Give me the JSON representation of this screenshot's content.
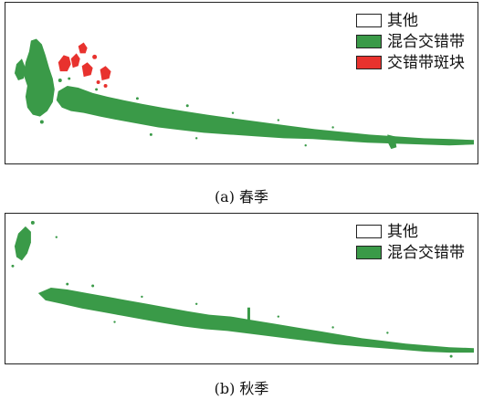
{
  "colors": {
    "other": "#ffffff",
    "mixed": "#3a9a48",
    "patch": "#e8322e",
    "border": "#222222"
  },
  "panels": [
    {
      "caption": "(a) 春季",
      "legend": [
        {
          "label": "其他",
          "color": "#ffffff",
          "icon": "white-square"
        },
        {
          "label": "混合交错带",
          "color": "#3a9a48",
          "icon": "green-square"
        },
        {
          "label": "交错带斑块",
          "color": "#e8322e",
          "icon": "red-square"
        }
      ]
    },
    {
      "caption": "(b) 秋季",
      "legend": [
        {
          "label": "其他",
          "color": "#ffffff",
          "icon": "white-square"
        },
        {
          "label": "混合交错带",
          "color": "#3a9a48",
          "icon": "green-square"
        }
      ]
    }
  ]
}
